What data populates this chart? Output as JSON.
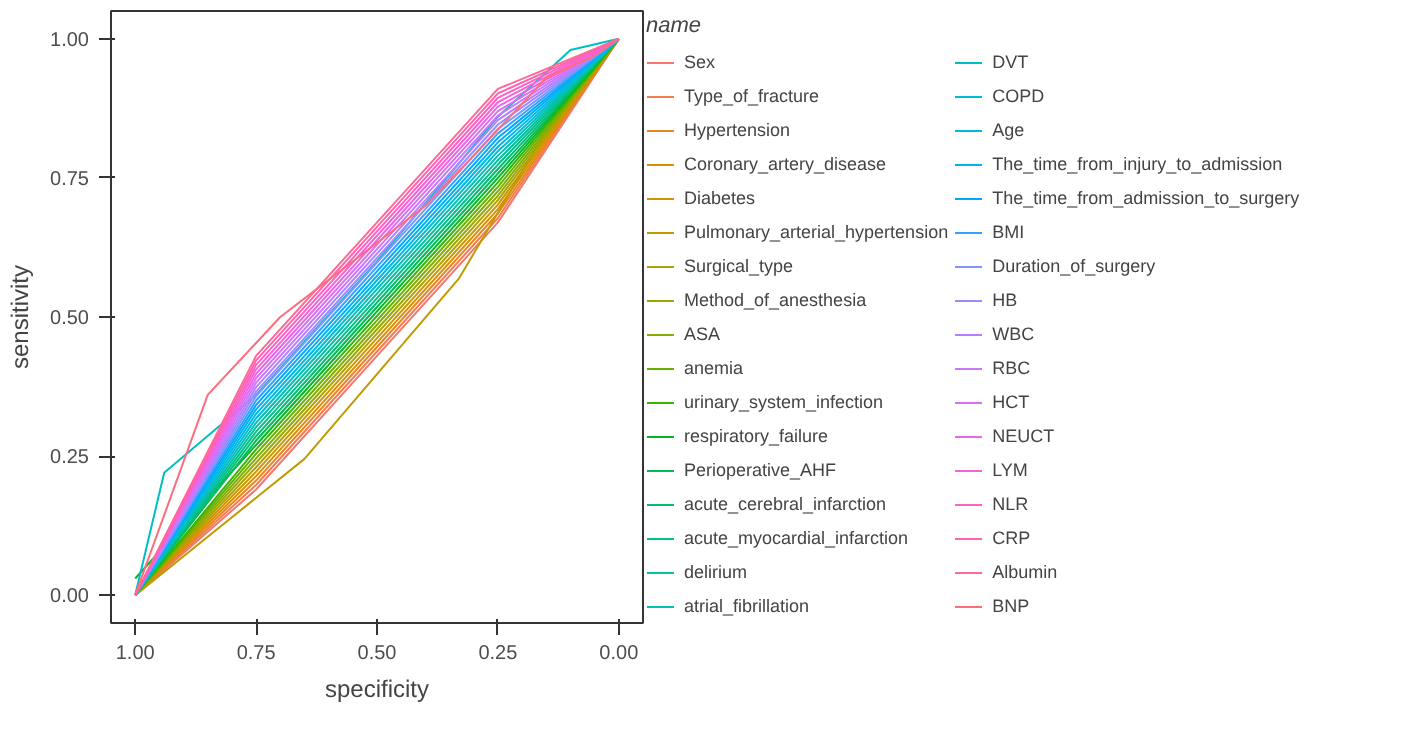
{
  "chart_data": {
    "type": "line",
    "xlabel": "specificity",
    "ylabel": "sensitivity",
    "legend_title": "name",
    "legend": "right",
    "grid": false,
    "line_style": "solid",
    "xlim": [
      1.05,
      -0.05
    ],
    "ylim": [
      -0.05,
      1.05
    ],
    "xticks": [
      {
        "value": 1,
        "label": "1.00"
      },
      {
        "value": 0.75,
        "label": "0.75"
      },
      {
        "value": 0.5,
        "label": "0.50"
      },
      {
        "value": 0.25,
        "label": "0.25"
      },
      {
        "value": 0,
        "label": "0.00"
      }
    ],
    "yticks": [
      {
        "value": 0,
        "label": "0.00"
      },
      {
        "value": 0.25,
        "label": "0.25"
      },
      {
        "value": 0.5,
        "label": "0.50"
      },
      {
        "value": 0.75,
        "label": "0.75"
      },
      {
        "value": 1,
        "label": "1.00"
      }
    ],
    "x": [
      1,
      0.75,
      0.5,
      0.25,
      0
    ],
    "series": [
      {
        "name": "Sex",
        "color": "#f8766d",
        "values": [
          0,
          0.19,
          0.43,
          0.67,
          1
        ]
      },
      {
        "name": "Type_of_fracture",
        "color": "#f17d51",
        "values": [
          0,
          0.198,
          0.438,
          0.678,
          1
        ]
      },
      {
        "name": "Hypertension",
        "color": "#e7851e",
        "values": [
          0,
          0.206,
          0.446,
          0.686,
          1
        ]
      },
      {
        "name": "Coronary_artery_disease",
        "color": "#db8e00",
        "values": [
          0,
          0.214,
          0.454,
          0.694,
          1
        ]
      },
      {
        "name": "Diabetes",
        "color": "#cf9400",
        "values": [
          0,
          0.222,
          0.462,
          0.702,
          1
        ]
      },
      {
        "name": "Pulmonary_arterial_hypertension",
        "color": "#c09b00",
        "x": [
          1,
          0.65,
          0.33,
          0.16,
          0
        ],
        "values": [
          0,
          0.245,
          0.57,
          0.82,
          1
        ]
      },
      {
        "name": "Surgical_type",
        "color": "#aea200",
        "values": [
          0,
          0.23,
          0.47,
          0.71,
          1
        ]
      },
      {
        "name": "Method_of_anesthesia",
        "color": "#9aa800",
        "values": [
          0,
          0.238,
          0.478,
          0.718,
          1
        ]
      },
      {
        "name": "ASA",
        "color": "#83ad00",
        "values": [
          0,
          0.246,
          0.486,
          0.726,
          1
        ]
      },
      {
        "name": "anemia",
        "color": "#64b200",
        "values": [
          0,
          0.254,
          0.494,
          0.734,
          1
        ]
      },
      {
        "name": "urinary_system_infection",
        "color": "#36b600",
        "values": [
          0,
          0.262,
          0.502,
          0.742,
          1
        ]
      },
      {
        "name": "respiratory_failure",
        "color": "#00b92a",
        "values": [
          0.03,
          0.27,
          0.51,
          0.75,
          1
        ]
      },
      {
        "name": "Perioperative_AHF",
        "color": "#00bc51",
        "values": [
          0,
          0.278,
          0.518,
          0.758,
          1
        ]
      },
      {
        "name": "acute_cerebral_infarction",
        "color": "#00be6f",
        "values": [
          0,
          0.286,
          0.526,
          0.766,
          1
        ]
      },
      {
        "name": "acute_myocardial_infarction",
        "color": "#00c089",
        "values": [
          0,
          0.294,
          0.534,
          0.774,
          1
        ]
      },
      {
        "name": "delirium",
        "color": "#00c1a0",
        "values": [
          0,
          0.302,
          0.542,
          0.782,
          1
        ]
      },
      {
        "name": "atrial_fibrillation",
        "color": "#00c1b4",
        "values": [
          0,
          0.31,
          0.55,
          0.79,
          1
        ]
      },
      {
        "name": "DVT",
        "color": "#00bfc4",
        "x": [
          1,
          0.94,
          0.75,
          0.5,
          0.25,
          0.1,
          0
        ],
        "values": [
          0,
          0.22,
          0.36,
          0.6,
          0.86,
          0.98,
          1
        ]
      },
      {
        "name": "COPD",
        "color": "#00bcd6",
        "values": [
          0,
          0.318,
          0.558,
          0.798,
          1
        ]
      },
      {
        "name": "Age",
        "color": "#00b8e5",
        "values": [
          0,
          0.326,
          0.566,
          0.806,
          1
        ]
      },
      {
        "name": "The_time_from_injury_to_admission",
        "color": "#00b2f1",
        "values": [
          0,
          0.334,
          0.574,
          0.814,
          1
        ]
      },
      {
        "name": "The_time_from_admission_to_surgery",
        "color": "#00aafa",
        "values": [
          0,
          0.342,
          0.582,
          0.822,
          1
        ]
      },
      {
        "name": "BMI",
        "color": "#35a1ff",
        "values": [
          0,
          0.35,
          0.59,
          0.83,
          1
        ]
      },
      {
        "name": "Duration_of_surgery",
        "color": "#7997ff",
        "values": [
          0,
          0.358,
          0.598,
          0.838,
          1
        ]
      },
      {
        "name": "HB",
        "color": "#9a8cff",
        "values": [
          0,
          0.366,
          0.606,
          0.846,
          1
        ]
      },
      {
        "name": "WBC",
        "color": "#b580ff",
        "values": [
          0,
          0.374,
          0.614,
          0.854,
          1
        ]
      },
      {
        "name": "RBC",
        "color": "#cb76ff",
        "values": [
          0,
          0.382,
          0.622,
          0.862,
          1
        ]
      },
      {
        "name": "HCT",
        "color": "#dd6df6",
        "values": [
          0,
          0.39,
          0.63,
          0.87,
          1
        ]
      },
      {
        "name": "NEUCT",
        "color": "#ea66ea",
        "values": [
          0,
          0.398,
          0.638,
          0.878,
          1
        ]
      },
      {
        "name": "LYM",
        "color": "#f663d9",
        "values": [
          0,
          0.406,
          0.646,
          0.886,
          1
        ]
      },
      {
        "name": "NLR",
        "color": "#fd61c5",
        "values": [
          0,
          0.414,
          0.654,
          0.894,
          1
        ]
      },
      {
        "name": "CRP",
        "color": "#ff63af",
        "values": [
          0,
          0.422,
          0.662,
          0.902,
          1
        ]
      },
      {
        "name": "Albumin",
        "color": "#ff6897",
        "values": [
          0,
          0.43,
          0.67,
          0.91,
          1
        ]
      },
      {
        "name": "BNP",
        "color": "#fc6d7e",
        "x": [
          1,
          0.85,
          0.7,
          0.55,
          0.4,
          0.3,
          0.15,
          0.05,
          0
        ],
        "values": [
          0,
          0.36,
          0.5,
          0.6,
          0.7,
          0.79,
          0.93,
          0.97,
          1
        ]
      }
    ]
  }
}
